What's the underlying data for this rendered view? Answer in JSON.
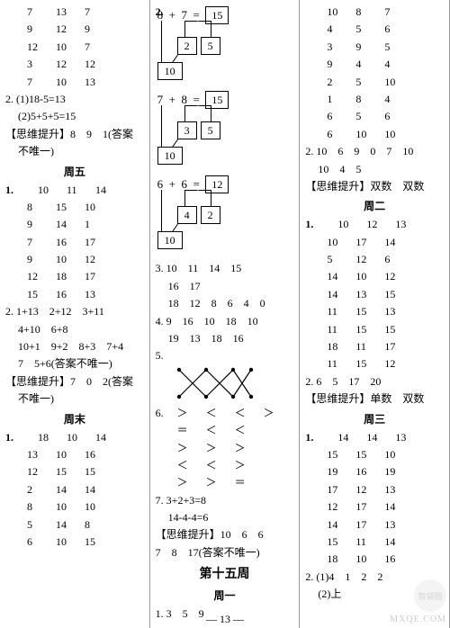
{
  "col1": {
    "triples_top": [
      [
        "7",
        "13",
        "7"
      ],
      [
        "9",
        "12",
        "9"
      ],
      [
        "12",
        "10",
        "7"
      ],
      [
        "3",
        "12",
        "12"
      ],
      [
        "7",
        "10",
        "13"
      ]
    ],
    "q2a": "2. (1)18-5=13",
    "q2b": "(2)5+5+5=15",
    "tips1": "【思维提升】8　9　1(答案",
    "tips1b": "不唯一)",
    "zhou5": "周五",
    "q1_pairsA": [
      [
        "10",
        "11",
        "14"
      ],
      [
        "8",
        "15",
        "10"
      ],
      [
        "9",
        "14",
        "1"
      ],
      [
        "7",
        "16",
        "17"
      ],
      [
        "9",
        "10",
        "12"
      ],
      [
        "12",
        "18",
        "17"
      ],
      [
        "15",
        "16",
        "13"
      ]
    ],
    "q2_lines": [
      "2. 1+13　2+12　3+11",
      "4+10　6+8",
      "10+1　9+2　8+3　7+4",
      "7　5+6(答案不唯一)"
    ],
    "tips2": "【思维提升】7　0　2(答案",
    "tips2b": "不唯一)",
    "zhoumo": "周末",
    "q1_pairsB": [
      [
        "18",
        "10",
        "14"
      ],
      [
        "13",
        "10",
        "16"
      ],
      [
        "12",
        "15",
        "15"
      ],
      [
        "2",
        "14",
        "14"
      ],
      [
        "8",
        "10",
        "10"
      ],
      [
        "5",
        "14",
        "8"
      ],
      [
        "6",
        "10",
        "15"
      ]
    ]
  },
  "col2": {
    "diagrams": [
      {
        "a": "8",
        "b": "7",
        "ans": "15",
        "s1": "2",
        "s2": "5",
        "base": "10"
      },
      {
        "a": "7",
        "b": "8",
        "ans": "15",
        "s1": "3",
        "s2": "5",
        "base": "10"
      },
      {
        "a": "6",
        "b": "6",
        "ans": "12",
        "s1": "4",
        "s2": "2",
        "base": "10"
      }
    ],
    "q3a": "3. 10　11　14　15",
    "q3b": "16　17",
    "q3c": "18　12　8　6　4　0",
    "q4a": "4. 9　16　10　18　10",
    "q4b": "19　13　18　16",
    "q5": "5.",
    "q6_rows": [
      [
        "6.",
        "＞",
        "＜",
        "＜",
        "＞"
      ],
      [
        "",
        "＝",
        "＜",
        "＜",
        ""
      ],
      [
        "",
        "＞",
        "＞",
        "＞",
        ""
      ],
      [
        "",
        "＜",
        "＜",
        "＞",
        ""
      ],
      [
        "",
        "＞",
        "＞",
        "＝",
        ""
      ]
    ],
    "q7a": "7. 3+2+3=8",
    "q7b": "14-4-4=6",
    "tips_a": "【思维提升】10　6　6",
    "tips_b": "7　8　17(答案不唯一)",
    "week": "第十五周",
    "zhou1": "周一",
    "bottom": "1. 3　5　9"
  },
  "col3": {
    "top": [
      [
        "10",
        "8",
        "7"
      ],
      [
        "4",
        "5",
        "6"
      ],
      [
        "3",
        "9",
        "5"
      ],
      [
        "9",
        "4",
        "4"
      ],
      [
        "2",
        "5",
        "10"
      ],
      [
        "1",
        "8",
        "4"
      ],
      [
        "6",
        "5",
        "6"
      ],
      [
        "6",
        "10",
        "10"
      ]
    ],
    "q2": "2. 10　6　9　0　7　10",
    "q2b": "10　4　5",
    "tips_d": "【思维提升】双数　双数",
    "zhou2": "周二",
    "mid": [
      [
        "10",
        "12",
        "13"
      ],
      [
        "10",
        "17",
        "14"
      ],
      [
        "5",
        "12",
        "6"
      ],
      [
        "14",
        "10",
        "12"
      ],
      [
        "14",
        "13",
        "15"
      ],
      [
        "11",
        "15",
        "13"
      ],
      [
        "11",
        "15",
        "15"
      ],
      [
        "18",
        "11",
        "17"
      ],
      [
        "11",
        "15",
        "12"
      ]
    ],
    "q2c": "2. 6　5　17　20",
    "tips_s": "【思维提升】单数　双数",
    "zhou3": "周三",
    "bot": [
      [
        "14",
        "14",
        "13"
      ],
      [
        "15",
        "15",
        "10"
      ],
      [
        "19",
        "16",
        "19"
      ],
      [
        "17",
        "12",
        "13"
      ],
      [
        "12",
        "17",
        "14"
      ],
      [
        "14",
        "17",
        "13"
      ],
      [
        "15",
        "11",
        "14"
      ],
      [
        "18",
        "10",
        "16"
      ]
    ],
    "q2d": "2. (1)4　1　2　2",
    "q2e": "(2)上"
  },
  "page": "— 13 —",
  "wm": "MXQE.COM",
  "logo": "智袋圈"
}
